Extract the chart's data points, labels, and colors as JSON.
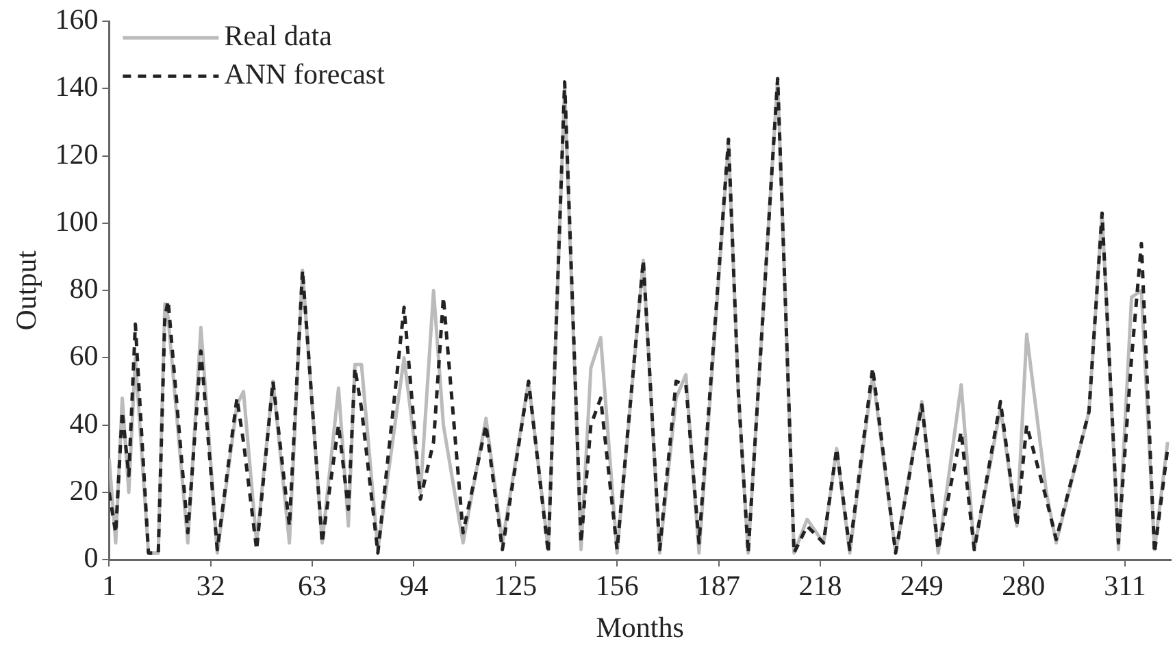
{
  "chart_data": {
    "type": "line",
    "xlabel": "Months",
    "ylabel": "Output",
    "xlim": [
      1,
      325
    ],
    "xticks": [
      1,
      32,
      63,
      94,
      125,
      156,
      187,
      218,
      249,
      280,
      311
    ],
    "ylim": [
      0,
      160
    ],
    "yticks": [
      0,
      20,
      40,
      60,
      80,
      100,
      120,
      140,
      160
    ],
    "grid": false,
    "legend": "top left",
    "marker": "none",
    "x": [
      1,
      3,
      5,
      7,
      9,
      13,
      16,
      18,
      19,
      25,
      29,
      34,
      40,
      42,
      46,
      51,
      56,
      60,
      66,
      71,
      74,
      76,
      78,
      83,
      91,
      96,
      100,
      103,
      109,
      116,
      121,
      129,
      135,
      140,
      145,
      148,
      151,
      156,
      164,
      169,
      174,
      177,
      181,
      190,
      193,
      196,
      205,
      210,
      214,
      219,
      223,
      227,
      234,
      241,
      249,
      254,
      261,
      265,
      273,
      278,
      281,
      287,
      290,
      300,
      304,
      309,
      313,
      316,
      320,
      324
    ],
    "series": [
      {
        "name": "Real data",
        "color": "#bbbbbb",
        "line_style": "solid",
        "values": [
          30,
          5,
          48,
          20,
          60,
          2,
          2,
          76,
          72,
          5,
          69,
          2,
          46,
          50,
          5,
          53,
          5,
          86,
          5,
          51,
          10,
          58,
          58,
          3,
          60,
          20,
          80,
          40,
          5,
          42,
          5,
          53,
          3,
          140,
          3,
          57,
          66,
          2,
          89,
          2,
          48,
          55,
          2,
          124,
          50,
          2,
          143,
          2,
          12,
          5,
          33,
          2,
          55,
          2,
          47,
          2,
          52,
          3,
          45,
          10,
          67,
          20,
          5,
          44,
          103,
          3,
          78,
          80,
          3,
          35
        ]
      },
      {
        "name": "ANN forecast",
        "color": "#222222",
        "line_style": "dashed",
        "values": [
          20,
          8,
          44,
          25,
          70,
          2,
          2,
          72,
          77,
          8,
          62,
          3,
          48,
          35,
          3,
          53,
          10,
          86,
          5,
          40,
          15,
          57,
          45,
          2,
          75,
          18,
          35,
          78,
          8,
          40,
          3,
          53,
          2,
          142,
          5,
          40,
          48,
          3,
          89,
          3,
          53,
          52,
          5,
          125,
          50,
          2,
          143,
          2,
          10,
          5,
          33,
          3,
          57,
          2,
          46,
          3,
          38,
          3,
          47,
          10,
          40,
          18,
          6,
          44,
          103,
          5,
          60,
          94,
          2,
          33
        ]
      }
    ]
  }
}
